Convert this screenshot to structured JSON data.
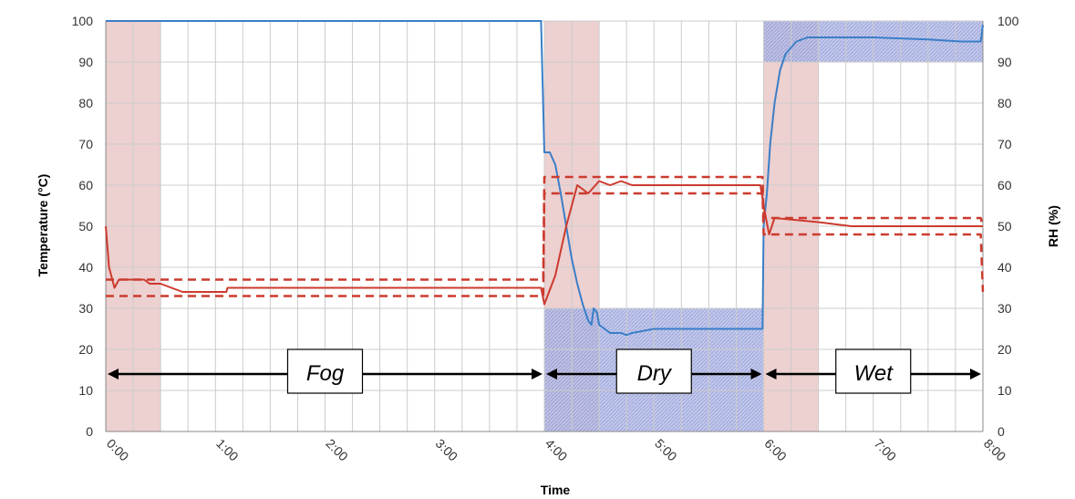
{
  "chart_data": {
    "type": "line",
    "title": "",
    "xlabel": "Time",
    "ylabel_left": "Temperature  (°C)",
    "ylabel_right": "RH (%)",
    "x_unit": "hours",
    "xlim": [
      0,
      8
    ],
    "ylim_left": [
      0,
      100
    ],
    "ylim_right": [
      0,
      100
    ],
    "x_ticks": [
      {
        "value": 0,
        "label": "0:00"
      },
      {
        "value": 1,
        "label": "1:00"
      },
      {
        "value": 2,
        "label": "2:00"
      },
      {
        "value": 3,
        "label": "3:00"
      },
      {
        "value": 4,
        "label": "4:00"
      },
      {
        "value": 5,
        "label": "5:00"
      },
      {
        "value": 6,
        "label": "6:00"
      },
      {
        "value": 7,
        "label": "7:00"
      },
      {
        "value": 8,
        "label": "8:00"
      }
    ],
    "y_ticks_left": [
      "0",
      "10",
      "20",
      "30",
      "40",
      "50",
      "60",
      "70",
      "80",
      "90",
      "100"
    ],
    "y_ticks_right": [
      "0",
      "10",
      "20",
      "30",
      "40",
      "50",
      "60",
      "70",
      "80",
      "90",
      "100"
    ],
    "grid": true,
    "shaded_regions": [
      {
        "x": [
          0,
          0.5
        ],
        "y": [
          0,
          100
        ],
        "color": "#e8c4c4"
      },
      {
        "x": [
          4,
          4.5
        ],
        "y": [
          0,
          100
        ],
        "color": "#e8c4c4"
      },
      {
        "x": [
          6,
          6.5
        ],
        "y": [
          0,
          100
        ],
        "color": "#e8c4c4"
      },
      {
        "x": [
          4,
          6
        ],
        "y": [
          0,
          30
        ],
        "color": "#a9b3e0"
      },
      {
        "x": [
          6,
          8
        ],
        "y": [
          90,
          100
        ],
        "color": "#a9b3e0"
      }
    ],
    "phases": [
      {
        "label": "Fog",
        "x_start": 0,
        "x_end": 4,
        "y": 14
      },
      {
        "label": "Dry",
        "x_start": 4,
        "x_end": 6,
        "y": 14
      },
      {
        "label": "Wet",
        "x_start": 6,
        "x_end": 8,
        "y": 14
      }
    ],
    "series": [
      {
        "name": "",
        "axis": "right",
        "color": "#3a7ec8",
        "style": "solid",
        "points": [
          [
            0,
            100
          ],
          [
            3.97,
            100
          ],
          [
            4.0,
            68
          ],
          [
            4.05,
            68
          ],
          [
            4.1,
            65
          ],
          [
            4.15,
            58
          ],
          [
            4.2,
            50
          ],
          [
            4.25,
            42
          ],
          [
            4.3,
            36
          ],
          [
            4.35,
            31
          ],
          [
            4.4,
            27
          ],
          [
            4.43,
            26
          ],
          [
            4.45,
            30
          ],
          [
            4.48,
            29
          ],
          [
            4.5,
            26
          ],
          [
            4.55,
            25
          ],
          [
            4.6,
            24
          ],
          [
            4.7,
            24
          ],
          [
            4.75,
            23.5
          ],
          [
            4.8,
            24
          ],
          [
            4.9,
            24.5
          ],
          [
            5.0,
            25
          ],
          [
            5.2,
            25
          ],
          [
            5.5,
            25
          ],
          [
            5.8,
            25
          ],
          [
            5.99,
            25
          ],
          [
            6.0,
            50
          ],
          [
            6.03,
            58
          ],
          [
            6.06,
            70
          ],
          [
            6.1,
            80
          ],
          [
            6.15,
            88
          ],
          [
            6.2,
            92
          ],
          [
            6.3,
            95
          ],
          [
            6.4,
            96
          ],
          [
            6.6,
            96
          ],
          [
            7.0,
            96
          ],
          [
            7.5,
            95.5
          ],
          [
            7.8,
            95
          ],
          [
            7.98,
            95
          ],
          [
            8.0,
            99
          ]
        ]
      },
      {
        "name": "",
        "axis": "left",
        "color": "#cc3a2e",
        "style": "solid",
        "points": [
          [
            0,
            50
          ],
          [
            0.03,
            40
          ],
          [
            0.08,
            35
          ],
          [
            0.12,
            37
          ],
          [
            0.35,
            37
          ],
          [
            0.4,
            36
          ],
          [
            0.5,
            36
          ],
          [
            0.6,
            35
          ],
          [
            0.7,
            34
          ],
          [
            1.1,
            34
          ],
          [
            1.11,
            35
          ],
          [
            2.0,
            35
          ],
          [
            3.0,
            35
          ],
          [
            3.97,
            35
          ],
          [
            4.0,
            31
          ],
          [
            4.1,
            38
          ],
          [
            4.2,
            50
          ],
          [
            4.3,
            60
          ],
          [
            4.4,
            58
          ],
          [
            4.5,
            61
          ],
          [
            4.6,
            60
          ],
          [
            4.7,
            61
          ],
          [
            4.8,
            60
          ],
          [
            5.0,
            60
          ],
          [
            5.5,
            60
          ],
          [
            5.97,
            60
          ],
          [
            6.0,
            55
          ],
          [
            6.05,
            48
          ],
          [
            6.1,
            52
          ],
          [
            6.5,
            51
          ],
          [
            6.8,
            50
          ],
          [
            7.5,
            50
          ],
          [
            8.0,
            50
          ]
        ]
      },
      {
        "name": "",
        "axis": "left",
        "color": "#cc3a2e",
        "style": "dashed",
        "points": [
          [
            0,
            37
          ],
          [
            3.99,
            37
          ],
          [
            4.0,
            62
          ],
          [
            5.99,
            62
          ],
          [
            6.0,
            52
          ],
          [
            7.98,
            52
          ],
          [
            8.0,
            50
          ]
        ]
      },
      {
        "name": "",
        "axis": "left",
        "color": "#cc3a2e",
        "style": "dashed",
        "points": [
          [
            0,
            33
          ],
          [
            3.99,
            33
          ],
          [
            4.0,
            58
          ],
          [
            5.99,
            58
          ],
          [
            6.0,
            48
          ],
          [
            7.98,
            48
          ],
          [
            8.0,
            34
          ]
        ]
      }
    ]
  }
}
